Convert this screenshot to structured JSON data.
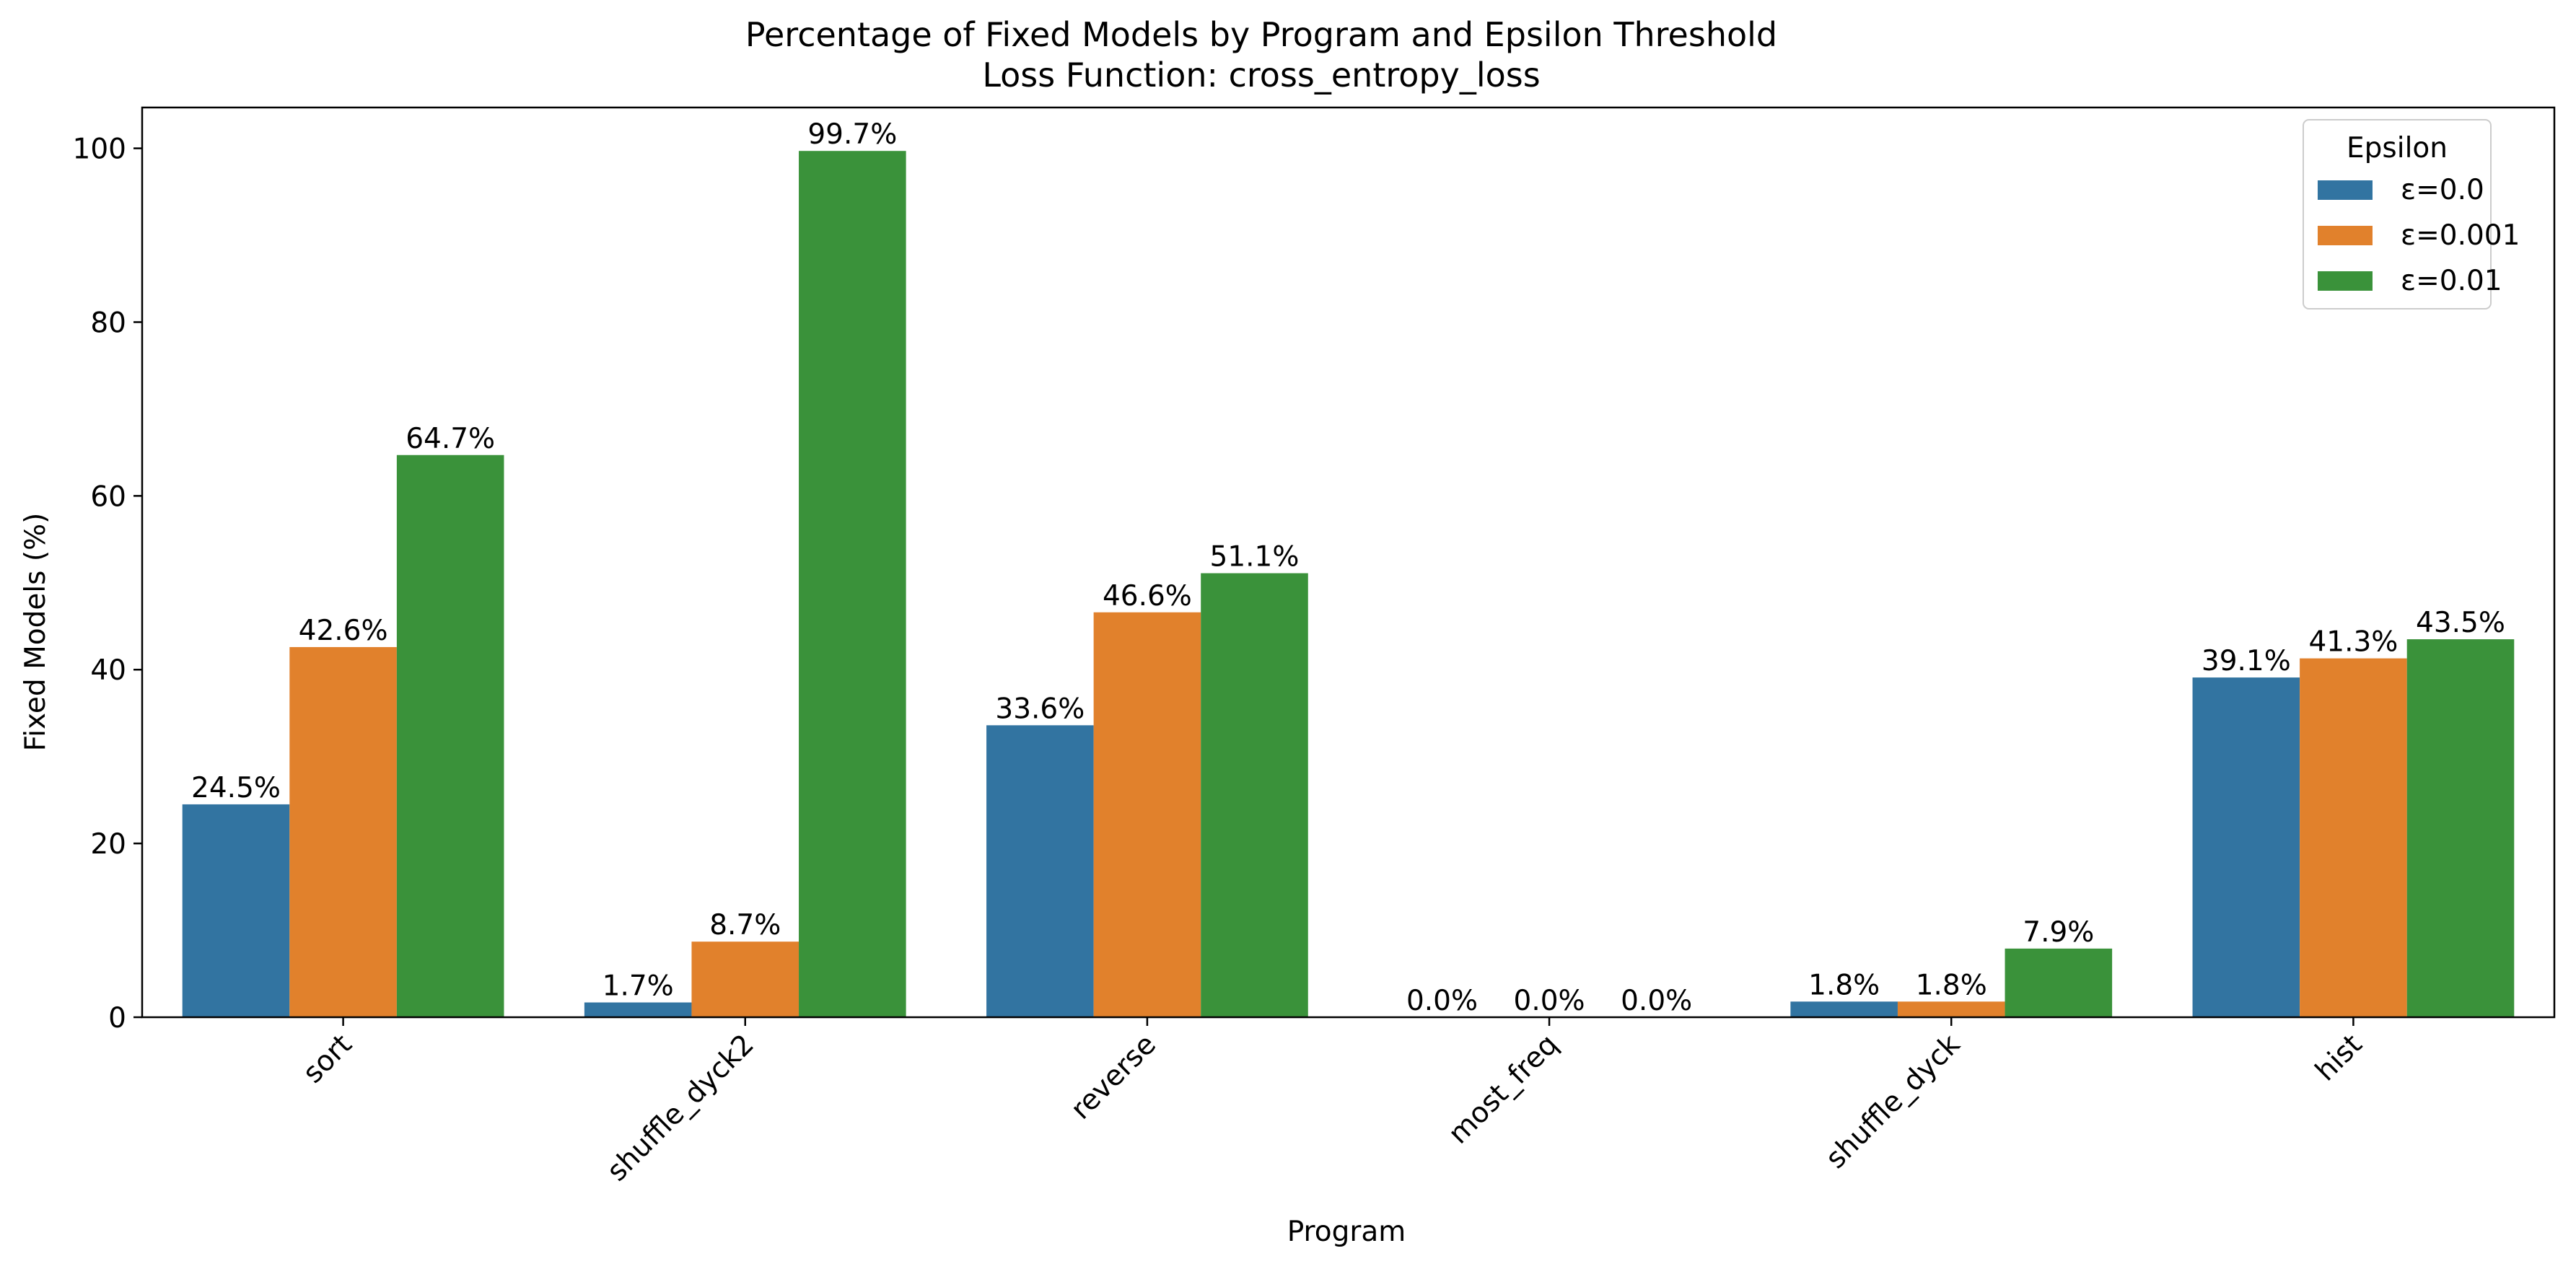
{
  "chart_data": {
    "type": "bar",
    "title": "Percentage of Fixed Models by Program and Epsilon Threshold",
    "subtitle": "Loss Function: cross_entropy_loss",
    "xlabel": "Program",
    "ylabel": "Fixed Models (%)",
    "ylim": [
      0,
      104.7
    ],
    "yticks": [
      0,
      20,
      40,
      60,
      80,
      100
    ],
    "grid": false,
    "categories": [
      "sort",
      "shuffle_dyck2",
      "reverse",
      "most_freq",
      "shuffle_dyck",
      "hist"
    ],
    "series": [
      {
        "name": "ε=0.0",
        "color": "#3274a1",
        "values": [
          24.5,
          1.7,
          33.6,
          0.0,
          1.8,
          39.1
        ],
        "labels": [
          "24.5%",
          "1.7%",
          "33.6%",
          "0.0%",
          "1.8%",
          "39.1%"
        ]
      },
      {
        "name": "ε=0.001",
        "color": "#e1812c",
        "values": [
          42.6,
          8.7,
          46.6,
          0.0,
          1.8,
          41.3
        ],
        "labels": [
          "42.6%",
          "8.7%",
          "46.6%",
          "0.0%",
          "1.8%",
          "41.3%"
        ]
      },
      {
        "name": "ε=0.01",
        "color": "#3a923a",
        "values": [
          64.7,
          99.7,
          51.1,
          0.0,
          7.9,
          43.5
        ],
        "labels": [
          "64.7%",
          "99.7%",
          "51.1%",
          "0.0%",
          "7.9%",
          "43.5%"
        ]
      }
    ],
    "legend": {
      "title": "Epsilon",
      "position": "top-right"
    }
  }
}
